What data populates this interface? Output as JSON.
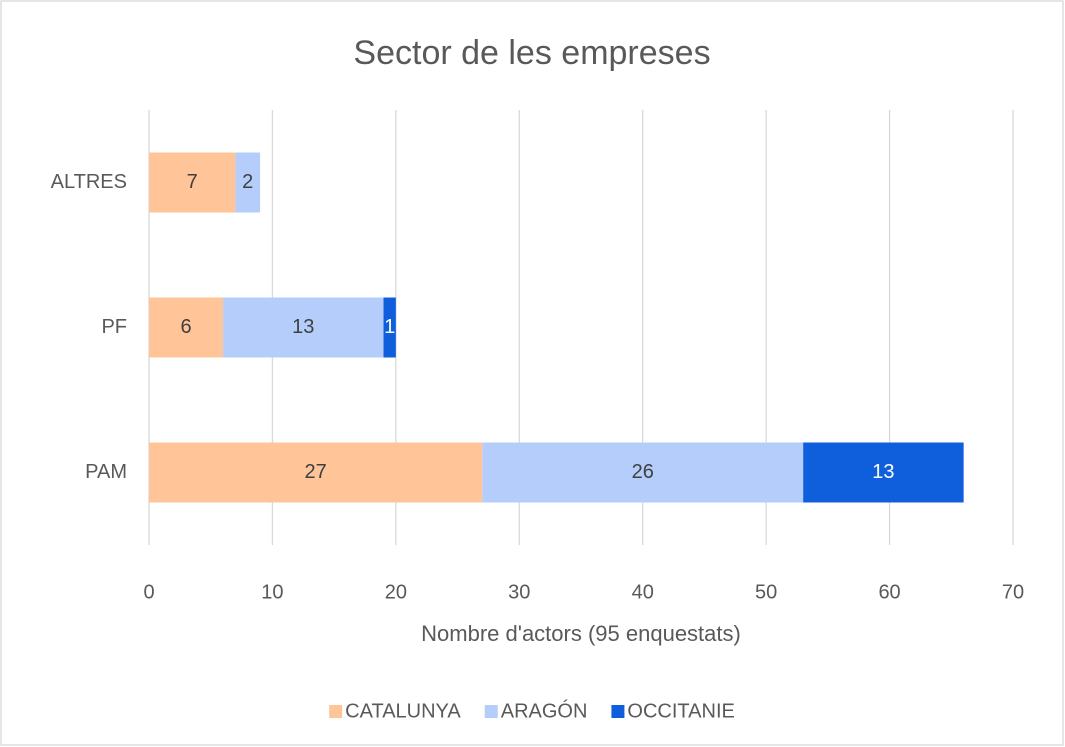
{
  "chart_data": {
    "type": "stacked-barh",
    "title": "Sector de les empreses",
    "xlabel": "Nombre d'actors (95 enquestats)",
    "categories": [
      "ALTRES",
      "PF",
      "PAM"
    ],
    "series": [
      {
        "name": "CATALUNYA",
        "color": "#ffc497",
        "values": [
          7,
          6,
          27
        ]
      },
      {
        "name": "ARAGÓN",
        "color": "#b4cdfa",
        "values": [
          2,
          13,
          26
        ]
      },
      {
        "name": "OCCITANIE",
        "color": "#0f5fdc",
        "values": [
          null,
          1,
          13
        ]
      }
    ],
    "xlim": [
      0,
      70
    ],
    "xticks": [
      0,
      10,
      20,
      30,
      40,
      50,
      60,
      70
    ],
    "grid": true,
    "legend": "bottom"
  }
}
